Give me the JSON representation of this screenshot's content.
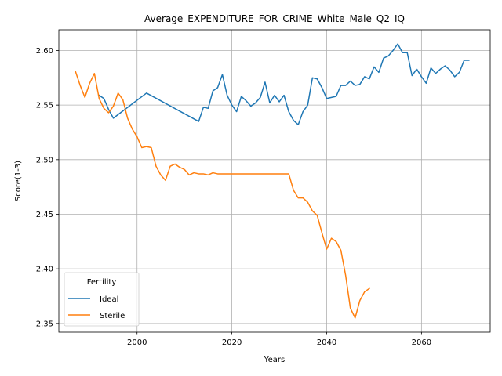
{
  "chart_data": {
    "type": "line",
    "title": "Average_EXPENDITURE_FOR_CRIME_White_Male_Q2_IQ",
    "xlabel": "Years",
    "ylabel": "Score(1-3)",
    "xlim": [
      1983.5,
      2074.5
    ],
    "ylim": [
      2.342,
      2.619
    ],
    "xticks": [
      2000,
      2020,
      2040,
      2060
    ],
    "yticks": [
      2.35,
      2.4,
      2.45,
      2.5,
      2.55,
      2.6
    ],
    "ytick_labels": [
      "2.35",
      "2.40",
      "2.45",
      "2.50",
      "2.55",
      "2.60"
    ],
    "grid": true,
    "legend": {
      "title": "Fertility",
      "position": "lower-left"
    },
    "series": [
      {
        "name": "Ideal",
        "color": "#1f77b4",
        "points": [
          [
            1992,
            2.559
          ],
          [
            1993,
            2.556
          ],
          [
            1994,
            2.546
          ],
          [
            1995,
            2.538
          ],
          [
            2002,
            2.561
          ],
          [
            2013,
            2.535
          ],
          [
            2014,
            2.548
          ],
          [
            2015,
            2.547
          ],
          [
            2016,
            2.563
          ],
          [
            2017,
            2.566
          ],
          [
            2018,
            2.578
          ],
          [
            2019,
            2.559
          ],
          [
            2020,
            2.55
          ],
          [
            2021,
            2.544
          ],
          [
            2022,
            2.558
          ],
          [
            2023,
            2.554
          ],
          [
            2024,
            2.549
          ],
          [
            2025,
            2.552
          ],
          [
            2026,
            2.557
          ],
          [
            2027,
            2.571
          ],
          [
            2028,
            2.552
          ],
          [
            2029,
            2.559
          ],
          [
            2030,
            2.553
          ],
          [
            2031,
            2.559
          ],
          [
            2032,
            2.544
          ],
          [
            2033,
            2.536
          ],
          [
            2034,
            2.532
          ],
          [
            2035,
            2.544
          ],
          [
            2036,
            2.55
          ],
          [
            2037,
            2.575
          ],
          [
            2038,
            2.574
          ],
          [
            2039,
            2.566
          ],
          [
            2040,
            2.556
          ],
          [
            2041,
            2.557
          ],
          [
            2042,
            2.558
          ],
          [
            2043,
            2.568
          ],
          [
            2044,
            2.568
          ],
          [
            2045,
            2.572
          ],
          [
            2046,
            2.568
          ],
          [
            2047,
            2.569
          ],
          [
            2048,
            2.576
          ],
          [
            2049,
            2.574
          ],
          [
            2050,
            2.585
          ],
          [
            2051,
            2.58
          ],
          [
            2052,
            2.593
          ],
          [
            2053,
            2.595
          ],
          [
            2054,
            2.6
          ],
          [
            2055,
            2.606
          ],
          [
            2056,
            2.598
          ],
          [
            2057,
            2.598
          ],
          [
            2058,
            2.577
          ],
          [
            2059,
            2.583
          ],
          [
            2060,
            2.576
          ],
          [
            2061,
            2.57
          ],
          [
            2062,
            2.584
          ],
          [
            2063,
            2.579
          ],
          [
            2064,
            2.583
          ],
          [
            2065,
            2.586
          ],
          [
            2066,
            2.582
          ],
          [
            2067,
            2.576
          ],
          [
            2068,
            2.58
          ],
          [
            2069,
            2.591
          ],
          [
            2070,
            2.591
          ]
        ]
      },
      {
        "name": "Sterile",
        "color": "#ff7f0e",
        "points": [
          [
            1987,
            2.581
          ],
          [
            1988,
            2.568
          ],
          [
            1989,
            2.557
          ],
          [
            1990,
            2.57
          ],
          [
            1991,
            2.579
          ],
          [
            1992,
            2.556
          ],
          [
            1993,
            2.547
          ],
          [
            1994,
            2.543
          ],
          [
            1995,
            2.549
          ],
          [
            1996,
            2.561
          ],
          [
            1997,
            2.555
          ],
          [
            1998,
            2.538
          ],
          [
            1999,
            2.528
          ],
          [
            2000,
            2.521
          ],
          [
            2001,
            2.511
          ],
          [
            2002,
            2.512
          ],
          [
            2003,
            2.511
          ],
          [
            2004,
            2.494
          ],
          [
            2005,
            2.486
          ],
          [
            2006,
            2.481
          ],
          [
            2007,
            2.494
          ],
          [
            2008,
            2.496
          ],
          [
            2009,
            2.493
          ],
          [
            2010,
            2.491
          ],
          [
            2011,
            2.486
          ],
          [
            2012,
            2.488
          ],
          [
            2013,
            2.487
          ],
          [
            2014,
            2.487
          ],
          [
            2015,
            2.486
          ],
          [
            2016,
            2.488
          ],
          [
            2017,
            2.487
          ],
          [
            2018,
            2.487
          ],
          [
            2019,
            2.487
          ],
          [
            2020,
            2.487
          ],
          [
            2021,
            2.487
          ],
          [
            2022,
            2.487
          ],
          [
            2023,
            2.487
          ],
          [
            2024,
            2.487
          ],
          [
            2025,
            2.487
          ],
          [
            2026,
            2.487
          ],
          [
            2027,
            2.487
          ],
          [
            2028,
            2.487
          ],
          [
            2029,
            2.487
          ],
          [
            2030,
            2.487
          ],
          [
            2031,
            2.487
          ],
          [
            2032,
            2.487
          ],
          [
            2033,
            2.472
          ],
          [
            2034,
            2.465
          ],
          [
            2035,
            2.465
          ],
          [
            2036,
            2.461
          ],
          [
            2037,
            2.453
          ],
          [
            2038,
            2.449
          ],
          [
            2039,
            2.433
          ],
          [
            2040,
            2.418
          ],
          [
            2041,
            2.428
          ],
          [
            2042,
            2.425
          ],
          [
            2043,
            2.417
          ],
          [
            2044,
            2.394
          ],
          [
            2045,
            2.364
          ],
          [
            2046,
            2.355
          ],
          [
            2047,
            2.371
          ],
          [
            2048,
            2.379
          ],
          [
            2049,
            2.382
          ]
        ]
      }
    ]
  }
}
